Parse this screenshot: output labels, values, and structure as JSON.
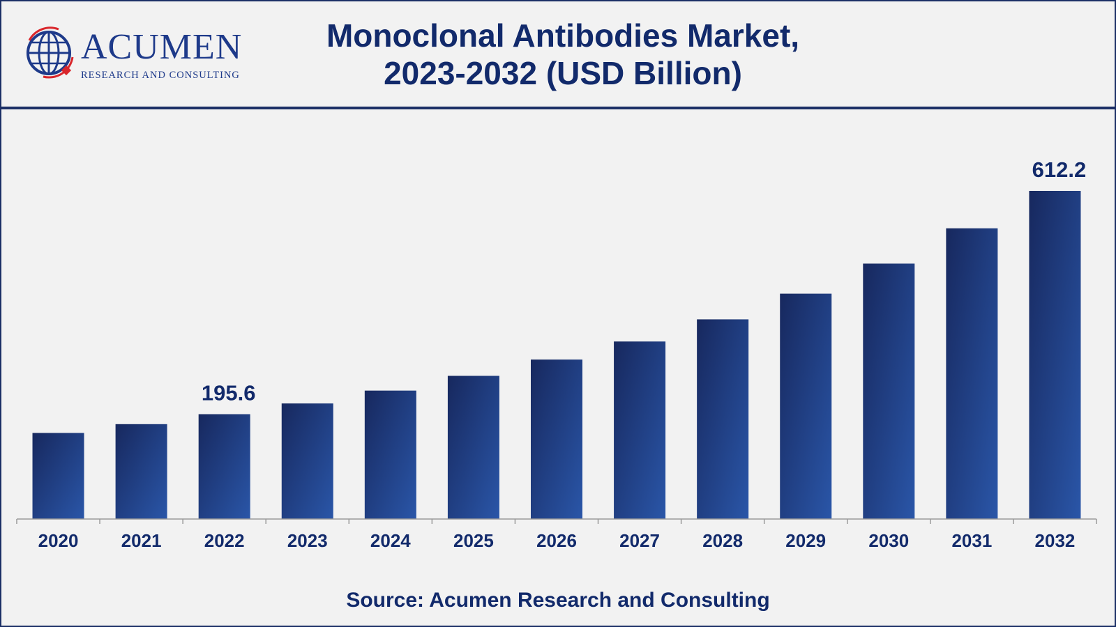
{
  "header": {
    "logo_name": "ACUMEN",
    "logo_tagline": "RESEARCH AND CONSULTING",
    "title_line1": "Monoclonal Antibodies Market,",
    "title_line2": "2023-2032 (USD Billion)"
  },
  "footer": {
    "source": "Source: Acumen Research and Consulting"
  },
  "colors": {
    "brand_navy": "#1c2f66",
    "bar_dark": "#17285e",
    "bar_light": "#2a56a8",
    "logo_red": "#d9262b"
  },
  "chart_data": {
    "type": "bar",
    "title": "Monoclonal Antibodies Market, 2023-2032 (USD Billion)",
    "xlabel": "",
    "ylabel": "",
    "categories": [
      "2020",
      "2021",
      "2022",
      "2023",
      "2024",
      "2025",
      "2026",
      "2027",
      "2028",
      "2029",
      "2030",
      "2031",
      "2032"
    ],
    "values": [
      160.6,
      177.0,
      195.6,
      215.6,
      239.6,
      267.1,
      297.5,
      331.2,
      372.5,
      420.4,
      476.5,
      542.4,
      612.2
    ],
    "data_labels": [
      null,
      null,
      "195.6",
      null,
      null,
      null,
      null,
      null,
      null,
      null,
      null,
      null,
      "612.2"
    ],
    "ylim": [
      0,
      612.2
    ],
    "grid": false,
    "legend": "none"
  }
}
